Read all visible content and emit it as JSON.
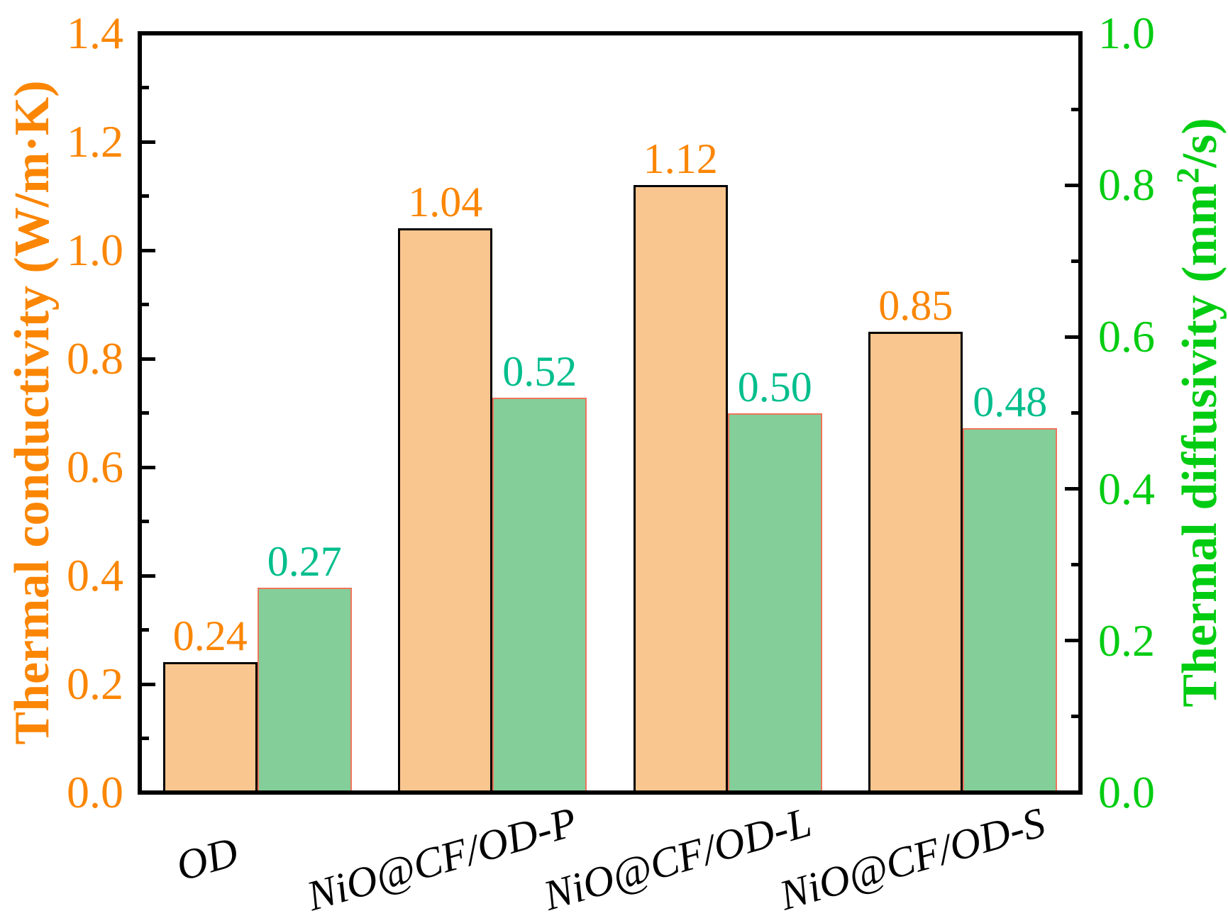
{
  "chart_data": {
    "type": "bar",
    "categories": [
      "OD",
      "NiO@CF/OD-P",
      "NiO@CF/OD-L",
      "NiO@CF/OD-S"
    ],
    "series": [
      {
        "name": "Thermal conductivity",
        "axis": "left",
        "values": [
          0.24,
          1.04,
          1.12,
          0.85
        ],
        "value_labels": [
          "0.24",
          "1.04",
          "1.12",
          "0.85"
        ],
        "bar_color": "#FAC68F",
        "bar_border_color": "#000000",
        "label_color": "#FB8604"
      },
      {
        "name": "Thermal diffusivity",
        "axis": "right",
        "values": [
          0.27,
          0.52,
          0.5,
          0.48
        ],
        "value_labels": [
          "0.27",
          "0.52",
          "0.50",
          "0.48"
        ],
        "bar_color": "#84CE9A",
        "bar_border_color": "#EF745C",
        "label_color": "#00BE8C"
      }
    ],
    "axes": {
      "left": {
        "title": "Thermal conductivity (W/m·K)",
        "color": "#FB8604",
        "min": 0.0,
        "max": 1.4,
        "major_step": 0.2,
        "minor_step": 0.1,
        "tick_labels": [
          "0.0",
          "0.2",
          "0.4",
          "0.6",
          "0.8",
          "1.0",
          "1.2",
          "1.4"
        ]
      },
      "right": {
        "title_prefix": "Thermal diffusivity (mm",
        "title_sup": "2",
        "title_suffix": "/s)",
        "color": "#00CC11",
        "min": 0.0,
        "max": 1.0,
        "major_step": 0.2,
        "minor_step": 0.1,
        "tick_labels": [
          "0.0",
          "0.2",
          "0.4",
          "0.6",
          "0.8",
          "1.0"
        ]
      }
    },
    "grid": false,
    "legend": "none",
    "frame_color": "#000000",
    "background_color": "#ffffff"
  }
}
